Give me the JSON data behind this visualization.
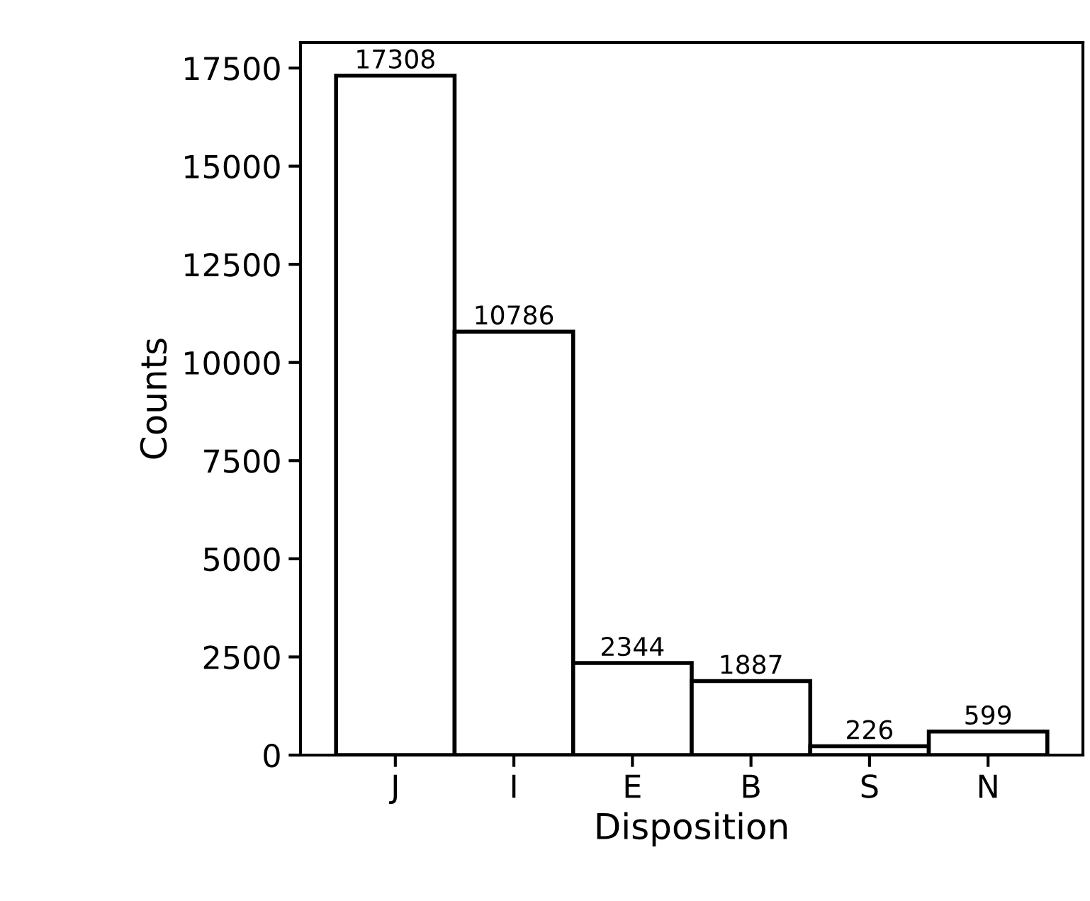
{
  "chart_data": {
    "type": "bar",
    "xlabel": "Disposition",
    "ylabel": "Counts",
    "categories": [
      "J",
      "I",
      "E",
      "B",
      "S",
      "N"
    ],
    "values": [
      17308,
      10786,
      2344,
      1887,
      226,
      599
    ],
    "color": "#ffffff",
    "ylim": [
      0,
      18150
    ],
    "yticks": [
      0,
      2500,
      5000,
      7500,
      10000,
      12500,
      15000,
      17500
    ],
    "data_labels": true,
    "grid": false,
    "legend": false
  }
}
